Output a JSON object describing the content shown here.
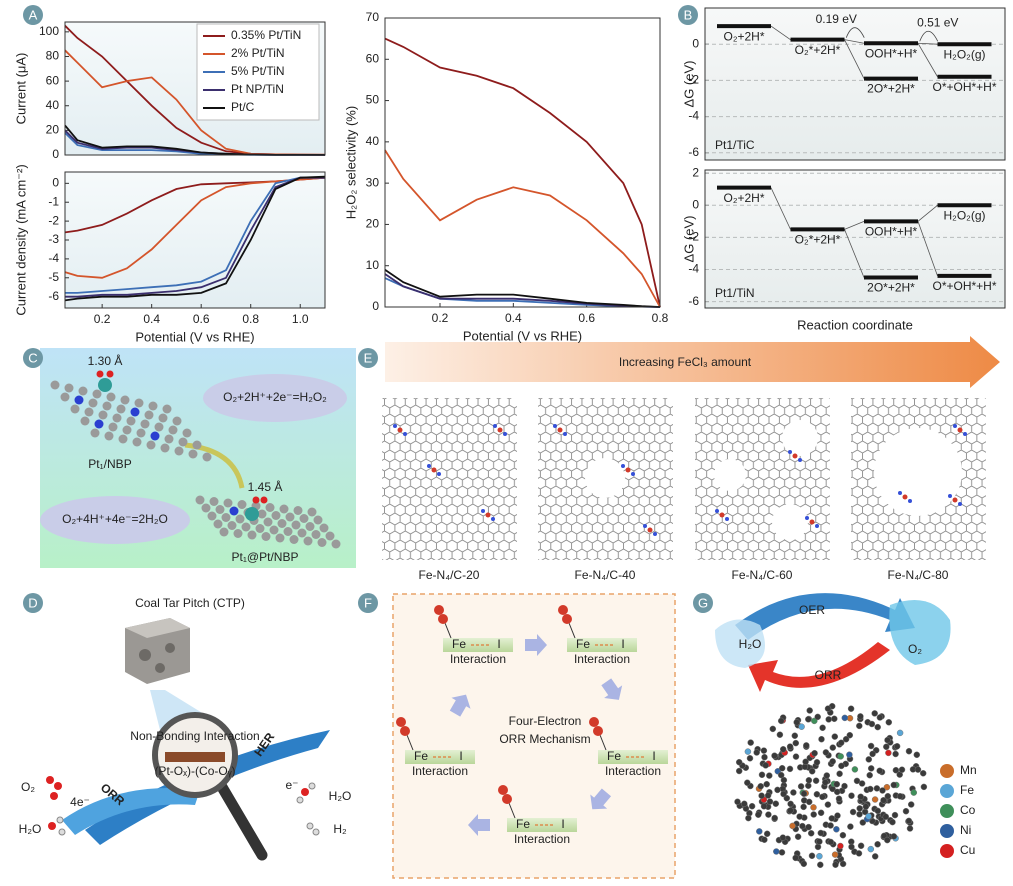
{
  "panel_labels": [
    "A",
    "B",
    "C",
    "E",
    "D",
    "F",
    "G"
  ],
  "chart_data": [
    {
      "type": "line",
      "ylabel": "Current  (μA)",
      "xlim": [
        0.05,
        1.1
      ],
      "ylim": [
        0,
        108
      ],
      "yticks": [
        0,
        20,
        40,
        60,
        80,
        100
      ],
      "legend": "upper right",
      "x": [
        0.05,
        0.1,
        0.2,
        0.3,
        0.4,
        0.5,
        0.6,
        0.7,
        0.8,
        0.9,
        1.0,
        1.1
      ],
      "series": [
        {
          "name": "0.35% Pt/TiN",
          "color": "#8e1c1c",
          "values": [
            105,
            95,
            80,
            60,
            40,
            22,
            10,
            3,
            1,
            0.5,
            0.3,
            0.2
          ]
        },
        {
          "name": "2% Pt/TiN",
          "color": "#d4552b",
          "values": [
            85,
            75,
            55,
            60,
            63,
            45,
            20,
            5,
            1,
            0.5,
            0.3,
            0.2
          ]
        },
        {
          "name": "5% Pt/TiN",
          "color": "#3d6fb6",
          "values": [
            18,
            8,
            4,
            4,
            4,
            3,
            1,
            0.5,
            0.2,
            0.1,
            0.1,
            0.1
          ]
        },
        {
          "name": "Pt NP/TiN",
          "color": "#3b2f6e",
          "values": [
            20,
            10,
            5,
            6,
            6,
            4,
            2,
            1,
            0.3,
            0.1,
            0.1,
            0.1
          ]
        },
        {
          "name": "Pt/C",
          "color": "#111111",
          "values": [
            24,
            12,
            6,
            7,
            7,
            5,
            2,
            1,
            0.3,
            0.1,
            0.1,
            0.1
          ]
        }
      ]
    },
    {
      "type": "line",
      "xlabel": "Potential (V vs RHE)",
      "ylabel": "Current density (mA cm⁻²)",
      "xlim": [
        0.05,
        1.1
      ],
      "ylim": [
        -6.6,
        0.6
      ],
      "yticks": [
        0,
        -1,
        -2,
        -3,
        -4,
        -5,
        -6
      ],
      "xticks": [
        0.2,
        0.4,
        0.6,
        0.8,
        {
          "value": 1,
          "label": "1.0"
        }
      ],
      "x": [
        0.05,
        0.1,
        0.2,
        0.3,
        0.4,
        0.5,
        0.6,
        0.7,
        0.8,
        0.9,
        1.0,
        1.1
      ],
      "series": [
        {
          "color": "#8e1c1c",
          "values": [
            -2.6,
            -2.5,
            -2.2,
            -1.6,
            -0.9,
            -0.3,
            -0.05,
            0,
            0.05,
            0.1,
            0.2,
            0.3
          ]
        },
        {
          "color": "#d4552b",
          "values": [
            -4.7,
            -4.9,
            -5.0,
            -4.5,
            -3.5,
            -2.2,
            -0.9,
            -0.2,
            0,
            0.1,
            0.2,
            0.3
          ]
        },
        {
          "color": "#3d6fb6",
          "values": [
            -5.8,
            -5.8,
            -5.7,
            -5.6,
            -5.5,
            -5.4,
            -5.2,
            -4.6,
            -2,
            0,
            0.3,
            0.3
          ]
        },
        {
          "color": "#3b2f6e",
          "values": [
            -6.0,
            -6.0,
            -5.9,
            -5.9,
            -5.8,
            -5.7,
            -5.5,
            -5,
            -2.5,
            -0.2,
            0.3,
            0.3
          ]
        },
        {
          "color": "#111111",
          "values": [
            -6.2,
            -6.1,
            -6.0,
            -6.0,
            -5.9,
            -5.9,
            -5.8,
            -5.3,
            -3,
            -0.3,
            0.3,
            0.35
          ]
        }
      ]
    },
    {
      "type": "line",
      "xlabel": "Potential (V vs RHE)",
      "ylabel": "H₂O₂ selectivity (%)",
      "xlim": [
        0.05,
        0.8
      ],
      "ylim": [
        0,
        70
      ],
      "yticks": [
        0,
        10,
        20,
        30,
        40,
        50,
        60,
        70
      ],
      "xticks": [
        0.2,
        0.4,
        0.6,
        0.8
      ],
      "x": [
        0.05,
        0.1,
        0.2,
        0.3,
        0.4,
        0.5,
        0.6,
        0.7,
        0.75,
        0.8
      ],
      "series": [
        {
          "color": "#8e1c1c",
          "values": [
            65,
            63,
            58,
            56,
            53,
            47,
            40,
            30,
            20,
            0
          ]
        },
        {
          "color": "#d4552b",
          "values": [
            38,
            31,
            21,
            26,
            29,
            27,
            21,
            13,
            8,
            0
          ]
        },
        {
          "color": "#3d6fb6",
          "values": [
            7,
            5,
            2,
            1.5,
            1.5,
            1,
            0.5,
            0.2,
            0.1,
            0
          ]
        },
        {
          "color": "#3b2f6e",
          "values": [
            8,
            5,
            2,
            2,
            2,
            1.5,
            0.8,
            0.3,
            0.1,
            0
          ]
        },
        {
          "color": "#111111",
          "values": [
            9,
            6,
            2.5,
            3,
            3,
            2,
            1,
            0.5,
            0.2,
            0
          ]
        }
      ]
    },
    {
      "type": "energy",
      "ylabel": "ΔG (eV)",
      "label": "Pt1/TiC",
      "ylim": [
        -6.4,
        2
      ],
      "yticks": [
        0,
        -2,
        -4,
        -6
      ],
      "grid": true,
      "color": "#111111",
      "categories": [
        "O₂+2H*",
        "O₂*+2H*",
        "OOH*+H*",
        "H₂O₂(g)",
        "2O*+2H*",
        "O*+OH*+H*"
      ],
      "values": [
        1.0,
        0.25,
        0.05,
        0,
        -1.9,
        -1.8
      ],
      "annotations": [
        "0.19 eV",
        "0.51 eV"
      ]
    },
    {
      "type": "energy",
      "ylabel": "ΔG (eV)",
      "xlabel": "Reaction coordinate",
      "label": "Pt1/TiN",
      "ylim": [
        -6.4,
        2.2
      ],
      "yticks": [
        2,
        0,
        -2,
        -4,
        -6
      ],
      "grid": true,
      "color": "#111111",
      "categories": [
        "O₂+2H*",
        "O₂*+2H*",
        "OOH*+H*",
        "H₂O₂(g)",
        "2O*+2H*",
        "O*+OH*+H*"
      ],
      "values": [
        1.1,
        -1.5,
        -1.0,
        0,
        -4.5,
        -4.4
      ]
    }
  ],
  "panel_c": {
    "bond_1": "1.30 Å",
    "equation_1": "O₂+2H⁺+2e⁻=H₂O₂",
    "catalyst_1": "Pt₁/NBP",
    "bond_2": "1.45 Å",
    "equation_2": "O₂+4H⁺+4e⁻=2H₂O",
    "catalyst_2": "Pt₁@Pt/NBP"
  },
  "panel_e": {
    "arrow_label": "Increasing FeCl₃ amount",
    "samples": [
      "Fe-N₄/C-20",
      "Fe-N₄/C-40",
      "Fe-N₄/C-60",
      "Fe-N₄/C-80"
    ]
  },
  "panel_d": {
    "title": "Coal Tar Pitch (CTP)",
    "lens_title": "Non-Bonding Interaction",
    "lens_formula": "(Pt-Oₓ)-(Co-Oᵧ)",
    "orr": "ORR",
    "her": "HER",
    "reactant_left": "O₂",
    "electrons_left": "4e⁻",
    "product_left": "H₂O",
    "electrons_right": "e⁻",
    "reactant_right": "H₂O",
    "product_right": "H₂"
  },
  "panel_f": {
    "center": [
      "Four-Electron",
      "ORR Mechanism"
    ],
    "steps": [
      {
        "left": "Fe",
        "right": "I",
        "label": "Interaction"
      },
      {
        "left": "Fe",
        "right": "I",
        "label": "Interaction"
      },
      {
        "left": "Fe",
        "right": "I",
        "label": "Interaction"
      },
      {
        "left": "Fe",
        "right": "I",
        "label": "Interaction"
      },
      {
        "left": "Fe",
        "right": "I",
        "label": "Interaction"
      }
    ]
  },
  "panel_g": {
    "oer": "OER",
    "orr": "ORR",
    "water": "H₂O",
    "oxygen": "O₂",
    "legend": [
      {
        "name": "Mn",
        "color": "#c96d2a"
      },
      {
        "name": "Fe",
        "color": "#5aa6d6"
      },
      {
        "name": "Co",
        "color": "#3f8f5a"
      },
      {
        "name": "Ni",
        "color": "#2f5f9e"
      },
      {
        "name": "Cu",
        "color": "#d42020"
      }
    ]
  }
}
